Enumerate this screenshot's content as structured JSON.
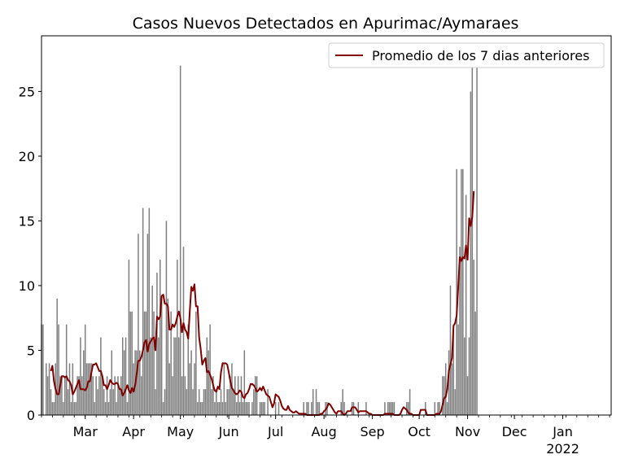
{
  "colors": {
    "bars": "#808080",
    "line": "#800000",
    "axis": "#000000",
    "legend_border": "#cccccc"
  },
  "chart_data": {
    "type": "bar",
    "title": "Casos Nuevos Detectados en Apurimac/Aymaraes",
    "xlabel": "",
    "ylabel": "",
    "ylim": [
      0,
      29.3
    ],
    "y_ticks": [
      0,
      5,
      10,
      15,
      20,
      25
    ],
    "x_tick_labels": [
      {
        "date": "2021-03-01",
        "label": "Mar"
      },
      {
        "date": "2021-04-01",
        "label": "Apr"
      },
      {
        "date": "2021-05-01",
        "label": "May"
      },
      {
        "date": "2021-06-01",
        "label": "Jun"
      },
      {
        "date": "2021-07-01",
        "label": "Jul"
      },
      {
        "date": "2021-08-01",
        "label": "Aug"
      },
      {
        "date": "2021-09-01",
        "label": "Sep"
      },
      {
        "date": "2021-10-01",
        "label": "Oct"
      },
      {
        "date": "2021-11-01",
        "label": "Nov"
      },
      {
        "date": "2021-12-01",
        "label": "Dec"
      },
      {
        "date": "2022-01-01",
        "label": "Jan",
        "sublabel": "2022"
      }
    ],
    "x_range": [
      "2021-02-01",
      "2022-02-01"
    ],
    "legend": {
      "position": "upper-right"
    },
    "series": [
      {
        "kind": "bar",
        "start_date": "2021-02-01",
        "values": [
          7,
          7,
          0,
          4,
          3,
          4,
          2,
          1,
          1,
          4,
          9,
          7,
          3,
          3,
          1,
          3,
          7,
          2,
          4,
          1,
          4,
          1,
          1,
          3,
          3,
          6,
          3,
          5,
          7,
          4,
          4,
          4,
          4,
          3,
          1,
          3,
          2,
          3,
          6,
          3,
          2,
          1,
          3,
          1,
          2,
          5,
          2,
          3,
          1,
          3,
          2,
          3,
          6,
          5,
          6,
          1,
          12,
          8,
          8,
          4,
          5,
          5,
          14,
          5,
          3,
          16,
          8,
          8,
          14,
          16,
          6,
          10,
          8,
          2,
          11,
          6,
          12,
          9,
          1,
          2,
          15,
          9,
          4,
          8,
          3,
          6,
          6,
          12,
          6,
          27,
          3,
          13,
          3,
          2,
          7,
          4,
          5,
          2,
          4,
          8,
          1,
          2,
          1,
          1,
          2,
          2,
          6,
          5,
          7,
          2,
          3,
          1,
          2,
          1,
          1,
          2,
          1,
          4,
          1,
          2,
          2,
          3,
          4,
          2,
          3,
          1,
          3,
          1,
          3,
          1,
          5,
          1,
          1,
          1,
          0,
          1,
          2,
          3,
          3,
          0,
          1,
          1,
          1,
          1,
          0,
          2,
          0,
          0,
          0,
          0,
          1,
          0,
          1,
          0,
          0,
          0,
          0,
          0,
          0,
          0,
          0,
          0,
          0,
          0,
          0,
          0,
          0,
          0,
          1,
          0,
          1,
          1,
          0,
          1,
          2,
          0,
          2,
          1,
          1,
          0,
          0,
          0,
          1,
          1,
          0,
          0,
          0,
          0,
          0,
          0,
          0,
          0,
          1,
          2,
          1,
          0,
          0,
          0,
          0,
          1,
          1,
          0,
          0,
          1,
          0,
          0,
          0,
          0,
          1,
          0,
          0,
          0,
          0,
          0,
          0,
          0,
          0,
          0,
          0,
          0,
          1,
          0,
          1,
          1,
          1,
          1,
          1,
          0,
          0,
          0,
          0,
          0,
          0,
          0,
          1,
          1,
          2,
          0,
          0,
          0,
          0,
          0,
          0,
          0,
          0,
          0,
          1,
          0,
          0,
          0,
          0,
          0,
          1,
          0,
          1,
          1,
          0,
          3,
          3,
          4,
          1,
          5,
          10,
          4,
          7,
          2,
          19,
          7,
          13,
          19,
          19,
          6,
          17,
          3,
          6,
          25,
          28,
          12,
          8,
          27
        ]
      },
      {
        "kind": "line",
        "name": "Promedio de los 7 dias anteriores",
        "start_date": "2021-02-07",
        "values": [
          3.4,
          3.8,
          2.6,
          2.0,
          1.6,
          1.6,
          2.3,
          3.0,
          3.0,
          2.9,
          3.0,
          2.7,
          2.6,
          2.3,
          1.6,
          1.8,
          2.1,
          2.4,
          2.7,
          2.0,
          2.0,
          2.0,
          1.9,
          2.1,
          2.6,
          2.6,
          3.3,
          3.9,
          3.9,
          4.0,
          3.7,
          3.4,
          3.4,
          3.0,
          2.3,
          2.3,
          2.0,
          2.3,
          2.7,
          2.5,
          2.4,
          2.4,
          2.5,
          2.4,
          2.0,
          2.0,
          1.5,
          1.7,
          2.0,
          2.3,
          1.9,
          1.7,
          2.1,
          1.8,
          2.3,
          3.2,
          4.2,
          4.2,
          4.5,
          5.0,
          5.6,
          5.8,
          4.9,
          5.5,
          5.7,
          5.9,
          6.0,
          5.0,
          7.6,
          7.4,
          7.6,
          9.2,
          9.3,
          8.6,
          8.6,
          8.4,
          6.6,
          6.6,
          7.0,
          6.8,
          7.1,
          7.6,
          8.0,
          7.5,
          6.4,
          7.1,
          6.6,
          6.4,
          5.9,
          8.0,
          9.9,
          9.6,
          10.1,
          8.4,
          8.4,
          6.0,
          5.1,
          3.9,
          4.2,
          4.4,
          3.3,
          3.4,
          3.1,
          2.8,
          2.3,
          1.9,
          1.8,
          2.2,
          2.0,
          3.3,
          4.0,
          4.0,
          4.0,
          3.9,
          3.3,
          2.6,
          2.1,
          1.9,
          1.7,
          1.6,
          1.7,
          1.9,
          1.8,
          1.4,
          1.3,
          1.6,
          1.7,
          2.0,
          2.4,
          2.4,
          2.3,
          2.1,
          1.8,
          1.9,
          2.1,
          1.9,
          2.2,
          1.9,
          1.6,
          1.5,
          1.4,
          1.0,
          0.6,
          0.9,
          1.6,
          1.5,
          1.4,
          1.1,
          0.7,
          0.5,
          0.4,
          0.4,
          0.7,
          0.4,
          0.3,
          0.2,
          0.2,
          0.3,
          0.2,
          0.1,
          0.1,
          0.1,
          0.1,
          0.1,
          0.0,
          0.0,
          0.0,
          0.0,
          0.0,
          0.0,
          0.0,
          0.0,
          0.0,
          0.1,
          0.1,
          0.3,
          0.4,
          0.6,
          0.9,
          0.8,
          0.6,
          0.4,
          0.2,
          0.1,
          0.3,
          0.3,
          0.3,
          0.1,
          0.0,
          0.1,
          0.3,
          0.3,
          0.3,
          0.6,
          0.6,
          0.6,
          0.4,
          0.2,
          0.3,
          0.3,
          0.3,
          0.3,
          0.3,
          0.2,
          0.1,
          0.1,
          0.0,
          0.0,
          0.0,
          0.0,
          0.0,
          0.0,
          0.0,
          0.0,
          0.1,
          0.1,
          0.1,
          0.1,
          0.1,
          0.1,
          0.0,
          0.0,
          0.0,
          0.0,
          0.1,
          0.4,
          0.6,
          0.5,
          0.4,
          0.2,
          0.1,
          0.1,
          0.0,
          0.0,
          0.0,
          0.0,
          0.0,
          0.4,
          0.4,
          0.4,
          0.4,
          0.0,
          0.0,
          0.0,
          0.0,
          0.0,
          0.0,
          0.1,
          0.1,
          0.1,
          0.3,
          0.8,
          1.3,
          1.4,
          2.0,
          3.4,
          3.9,
          4.4,
          6.9,
          7.1,
          7.7,
          9.9,
          12.2,
          11.9,
          12.2,
          12.1,
          13.1,
          12.0,
          15.2,
          14.6,
          15.3,
          17.3
        ]
      }
    ]
  }
}
